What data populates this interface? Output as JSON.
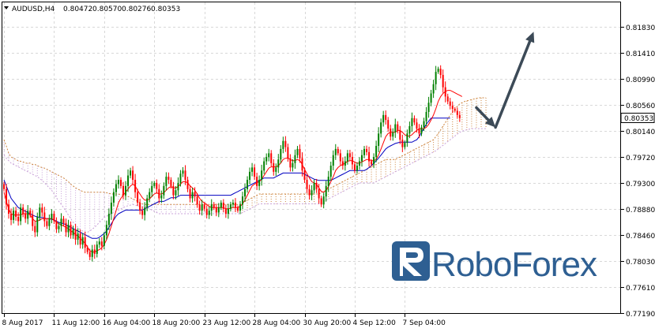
{
  "header": {
    "symbol": "AUDUSD,H4",
    "open": "0.80472",
    "high": "0.80570",
    "low": "0.80276",
    "close": "0.80353"
  },
  "watermark": {
    "brand": "RoboForex"
  },
  "colors": {
    "bull": "#008000",
    "bear": "#ff0000",
    "tenkan": "#ff0000",
    "kijun": "#0000c0",
    "cloud_a": "#cd853f",
    "cloud_b": "#c8a0d8",
    "arrow": "#3c4a57",
    "logo": "#2e5f92",
    "grid": "#d8d8d8"
  },
  "chart_data": {
    "type": "candlestick",
    "indicator": "ichimoku",
    "price_label": "0.80353",
    "y_ticks": [
      "0.81830",
      "0.81410",
      "0.80990",
      "0.80560",
      "0.80140",
      "0.79720",
      "0.79300",
      "0.78880",
      "0.78460",
      "0.78030",
      "0.77610",
      "0.77190"
    ],
    "y_values": [
      0.8183,
      0.8141,
      0.8099,
      0.8056,
      0.8014,
      0.7972,
      0.793,
      0.7888,
      0.7846,
      0.7803,
      0.7761,
      0.7719
    ],
    "x_ticks": [
      "8 Aug 2017",
      "11 Aug 12:00",
      "16 Aug 04:00",
      "18 Aug 20:00",
      "23 Aug 12:00",
      "28 Aug 04:00",
      "30 Aug 20:00",
      "4 Sep 12:00",
      "7 Sep 04:00"
    ],
    "x_tick_bars": [
      0,
      21,
      42,
      63,
      84,
      105,
      126,
      147,
      168
    ],
    "closes": [
      0.792,
      0.7895,
      0.788,
      0.787,
      0.7885,
      0.7875,
      0.7868,
      0.789,
      0.788,
      0.7872,
      0.7885,
      0.7878,
      0.786,
      0.785,
      0.7875,
      0.789,
      0.7882,
      0.7868,
      0.786,
      0.7872,
      0.788,
      0.7868,
      0.7855,
      0.786,
      0.7872,
      0.7865,
      0.785,
      0.7862,
      0.7845,
      0.7855,
      0.7838,
      0.7848,
      0.783,
      0.7842,
      0.7825,
      0.7818,
      0.781,
      0.7822,
      0.7815,
      0.783,
      0.7835,
      0.7828,
      0.7845,
      0.7862,
      0.788,
      0.7898,
      0.7915,
      0.7928,
      0.7935,
      0.7925,
      0.791,
      0.7925,
      0.7942,
      0.795,
      0.7935,
      0.7915,
      0.7898,
      0.7885,
      0.7878,
      0.789,
      0.7905,
      0.7915,
      0.7925,
      0.793,
      0.792,
      0.7905,
      0.791,
      0.7925,
      0.794,
      0.7935,
      0.7925,
      0.791,
      0.7918,
      0.793,
      0.7945,
      0.795,
      0.7935,
      0.792,
      0.7905,
      0.7915,
      0.7908,
      0.7895,
      0.7885,
      0.7895,
      0.7888,
      0.7878,
      0.7885,
      0.7895,
      0.789,
      0.7882,
      0.789,
      0.7898,
      0.7888,
      0.788,
      0.7888,
      0.7895,
      0.7898,
      0.789,
      0.7885,
      0.7895,
      0.7908,
      0.792,
      0.7935,
      0.7948,
      0.7955,
      0.794,
      0.7925,
      0.7935,
      0.795,
      0.7965,
      0.7972,
      0.7978,
      0.7962,
      0.7948,
      0.7955,
      0.7968,
      0.7985,
      0.7998,
      0.7988,
      0.797,
      0.7955,
      0.7962,
      0.7975,
      0.7985,
      0.797,
      0.795,
      0.7935,
      0.792,
      0.791,
      0.7918,
      0.793,
      0.792,
      0.7905,
      0.7895,
      0.7908,
      0.7925,
      0.794,
      0.7958,
      0.7975,
      0.7985,
      0.7978,
      0.7965,
      0.7958,
      0.7965,
      0.7978,
      0.7972,
      0.796,
      0.795,
      0.7958,
      0.7965,
      0.7975,
      0.7985,
      0.798,
      0.7965,
      0.796,
      0.7972,
      0.799,
      0.801,
      0.8028,
      0.804,
      0.8032,
      0.8018,
      0.8005,
      0.8012,
      0.8025,
      0.8015,
      0.8,
      0.7988,
      0.7995,
      0.801,
      0.8022,
      0.8035,
      0.8028,
      0.8018,
      0.801,
      0.802,
      0.803,
      0.8045,
      0.806,
      0.8075,
      0.809,
      0.811,
      0.8115,
      0.8105,
      0.8085,
      0.807,
      0.8062,
      0.8055,
      0.805,
      0.8047,
      0.804,
      0.8035
    ],
    "tenkan": [
      0.7915,
      0.79,
      0.7888,
      0.788,
      0.7878,
      0.7878,
      0.7878,
      0.7878,
      0.788,
      0.788,
      0.788,
      0.7878,
      0.7872,
      0.7868,
      0.7868,
      0.787,
      0.7872,
      0.7872,
      0.7872,
      0.7872,
      0.7872,
      0.787,
      0.7866,
      0.7864,
      0.7862,
      0.786,
      0.7858,
      0.7856,
      0.7852,
      0.785,
      0.7846,
      0.7844,
      0.784,
      0.7836,
      0.7832,
      0.7826,
      0.782,
      0.7818,
      0.7818,
      0.782,
      0.7822,
      0.7825,
      0.783,
      0.7838,
      0.7848,
      0.786,
      0.7872,
      0.7885,
      0.7898,
      0.7905,
      0.791,
      0.7915,
      0.792,
      0.7925,
      0.7928,
      0.7925,
      0.7918,
      0.7912,
      0.7906,
      0.7902,
      0.7902,
      0.7904,
      0.7908,
      0.7912,
      0.7914,
      0.7912,
      0.7912,
      0.7914,
      0.7918,
      0.7922,
      0.7924,
      0.7922,
      0.7922,
      0.7924,
      0.7928,
      0.7932,
      0.7932,
      0.793,
      0.7925,
      0.7922,
      0.7918,
      0.7912,
      0.7905,
      0.79,
      0.7898,
      0.7895,
      0.7892,
      0.789,
      0.789,
      0.789,
      0.789,
      0.789,
      0.789,
      0.7888,
      0.7888,
      0.7889,
      0.789,
      0.789,
      0.789,
      0.7892,
      0.7896,
      0.7902,
      0.791,
      0.7918,
      0.7925,
      0.7928,
      0.793,
      0.7932,
      0.7936,
      0.7942,
      0.7948,
      0.7954,
      0.7956,
      0.7956,
      0.7956,
      0.7958,
      0.7962,
      0.7968,
      0.797,
      0.797,
      0.7968,
      0.7966,
      0.7966,
      0.7968,
      0.7966,
      0.796,
      0.7952,
      0.7945,
      0.7938,
      0.7932,
      0.793,
      0.7928,
      0.7922,
      0.7916,
      0.7915,
      0.7918,
      0.7924,
      0.7932,
      0.794,
      0.795,
      0.7955,
      0.7958,
      0.796,
      0.7962,
      0.7965,
      0.7966,
      0.7966,
      0.7964,
      0.7962,
      0.7962,
      0.7964,
      0.7966,
      0.7968,
      0.7968,
      0.7966,
      0.7966,
      0.7968,
      0.7975,
      0.7985,
      0.7995,
      0.8005,
      0.801,
      0.8012,
      0.8012,
      0.8012,
      0.8015,
      0.8015,
      0.8012,
      0.8008,
      0.8006,
      0.8006,
      0.8008,
      0.8012,
      0.8015,
      0.8018,
      0.8018,
      0.8018,
      0.802,
      0.8025,
      0.8032,
      0.804,
      0.805,
      0.8062,
      0.807,
      0.8075,
      0.8078,
      0.808,
      0.808,
      0.8078,
      0.8076,
      0.8074,
      0.8072,
      0.807
    ],
    "kijun": [
      0.7935,
      0.7925,
      0.7915,
      0.7905,
      0.79,
      0.7895,
      0.789,
      0.7888,
      0.7886,
      0.7884,
      0.7882,
      0.788,
      0.7878,
      0.7876,
      0.7875,
      0.7874,
      0.7874,
      0.7873,
      0.7872,
      0.7872,
      0.7871,
      0.787,
      0.7868,
      0.7866,
      0.7865,
      0.7864,
      0.7862,
      0.786,
      0.7858,
      0.7856,
      0.7854,
      0.7852,
      0.785,
      0.7848,
      0.7846,
      0.7844,
      0.7842,
      0.784,
      0.784,
      0.784,
      0.7842,
      0.7845,
      0.7848,
      0.7852,
      0.7858,
      0.7864,
      0.787,
      0.7876,
      0.788,
      0.7882,
      0.7884,
      0.7886,
      0.7886,
      0.7886,
      0.7886,
      0.7886,
      0.7886,
      0.7886,
      0.7886,
      0.7888,
      0.789,
      0.7892,
      0.7894,
      0.7896,
      0.7898,
      0.79,
      0.79,
      0.79,
      0.7902,
      0.7904,
      0.7906,
      0.7906,
      0.7906,
      0.7908,
      0.791,
      0.791,
      0.791,
      0.791,
      0.791,
      0.791,
      0.791,
      0.791,
      0.791,
      0.791,
      0.791,
      0.791,
      0.791,
      0.791,
      0.791,
      0.791,
      0.791,
      0.791,
      0.791,
      0.791,
      0.791,
      0.791,
      0.7912,
      0.7914,
      0.7916,
      0.7918,
      0.792,
      0.7922,
      0.7924,
      0.7926,
      0.7928,
      0.793,
      0.7932,
      0.7934,
      0.7936,
      0.7938,
      0.7938,
      0.7938,
      0.7938,
      0.7938,
      0.794,
      0.7942,
      0.7944,
      0.7946,
      0.7946,
      0.7946,
      0.7946,
      0.7946,
      0.7946,
      0.7946,
      0.7946,
      0.7946,
      0.7944,
      0.7942,
      0.794,
      0.7938,
      0.7936,
      0.7935,
      0.7934,
      0.7934,
      0.7934,
      0.7934,
      0.7934,
      0.7934,
      0.7936,
      0.7938,
      0.794,
      0.7942,
      0.7944,
      0.7946,
      0.7948,
      0.795,
      0.795,
      0.795,
      0.795,
      0.795,
      0.795,
      0.795,
      0.7952,
      0.7955,
      0.7958,
      0.7962,
      0.7966,
      0.797,
      0.7975,
      0.798,
      0.7985,
      0.7988,
      0.799,
      0.7992,
      0.7994,
      0.7995,
      0.7996,
      0.7996,
      0.7996,
      0.7996,
      0.7996,
      0.7996,
      0.7998,
      0.8,
      0.8005,
      0.8012,
      0.8018,
      0.8025,
      0.803,
      0.8035,
      0.8035,
      0.8035,
      0.8035,
      0.8035,
      0.8035,
      0.8035,
      0.8035,
      0.8035
    ],
    "cloud_upper": [
      0.8,
      0.799,
      0.7978,
      0.7972,
      0.797,
      0.7968,
      0.7966,
      0.7965,
      0.7964,
      0.7962,
      0.7962,
      0.7962,
      0.796,
      0.796,
      0.7958,
      0.7956,
      0.7955,
      0.7954,
      0.7952,
      0.795,
      0.7948,
      0.7946,
      0.7944,
      0.7942,
      0.794,
      0.7938,
      0.7935,
      0.7932,
      0.7928,
      0.7925,
      0.7922,
      0.792,
      0.7918,
      0.7916,
      0.7915,
      0.7915,
      0.7915,
      0.7915,
      0.7915,
      0.7915,
      0.7915,
      0.7915,
      0.7915,
      0.7914,
      0.7913,
      0.7912,
      0.7912,
      0.7912,
      0.7912,
      0.7911,
      0.791,
      0.7909,
      0.7908,
      0.7906,
      0.7904,
      0.7902,
      0.79,
      0.7898,
      0.7896,
      0.7895,
      0.7895,
      0.7895,
      0.7895,
      0.7895,
      0.7895,
      0.7895,
      0.7895,
      0.7895,
      0.7895,
      0.7895,
      0.7895,
      0.7895,
      0.7895,
      0.7895,
      0.7895,
      0.7895,
      0.7895,
      0.7895,
      0.7895,
      0.7895,
      0.7895,
      0.7895,
      0.7895,
      0.7895,
      0.7895,
      0.7895,
      0.7895,
      0.7895,
      0.7895,
      0.7895,
      0.7895,
      0.7895,
      0.7895,
      0.7895,
      0.7895,
      0.7895,
      0.7895,
      0.7895,
      0.7895,
      0.7895,
      0.7898,
      0.79,
      0.7902,
      0.7904,
      0.7906,
      0.7908,
      0.791,
      0.7912,
      0.7912,
      0.7912,
      0.7912,
      0.7912,
      0.7912,
      0.7912,
      0.7912,
      0.7912,
      0.7912,
      0.7912,
      0.7912,
      0.7912,
      0.7912,
      0.7912,
      0.7912,
      0.7912,
      0.7912,
      0.7912,
      0.7912,
      0.7912,
      0.7912,
      0.7912,
      0.7912,
      0.7912,
      0.7912,
      0.7914,
      0.7916,
      0.7918,
      0.792,
      0.7922,
      0.7924,
      0.7926,
      0.7928,
      0.793,
      0.7932,
      0.7934,
      0.7936,
      0.7938,
      0.794,
      0.7942,
      0.7944,
      0.7946,
      0.7948,
      0.795,
      0.7952,
      0.7954,
      0.7956,
      0.7958,
      0.796,
      0.7962,
      0.7964,
      0.7966,
      0.7968,
      0.7968,
      0.7968,
      0.7968,
      0.7968,
      0.797,
      0.7972,
      0.7974,
      0.7976,
      0.7978,
      0.798,
      0.7982,
      0.7984,
      0.7986,
      0.7988,
      0.799,
      0.7992,
      0.7994,
      0.7996,
      0.7998,
      0.8,
      0.8005,
      0.801,
      0.8016,
      0.8022,
      0.8028,
      0.8034,
      0.804,
      0.8045,
      0.805,
      0.8054,
      0.8058,
      0.806,
      0.8062,
      0.8063,
      0.8064,
      0.8065,
      0.8066,
      0.8067,
      0.8068,
      0.8068,
      0.8068,
      0.8068
    ],
    "cloud_lower": [
      0.7975,
      0.797,
      0.7966,
      0.7962,
      0.796,
      0.7958,
      0.7956,
      0.7954,
      0.7952,
      0.795,
      0.7948,
      0.7946,
      0.7944,
      0.7942,
      0.794,
      0.7937,
      0.7934,
      0.793,
      0.7926,
      0.7922,
      0.7918,
      0.7912,
      0.7906,
      0.79,
      0.7895,
      0.789,
      0.7884,
      0.7878,
      0.7872,
      0.7866,
      0.7862,
      0.7858,
      0.7854,
      0.7852,
      0.785,
      0.785,
      0.7852,
      0.7855,
      0.7858,
      0.7862,
      0.7866,
      0.787,
      0.7874,
      0.7876,
      0.7878,
      0.788,
      0.7882,
      0.7884,
      0.7886,
      0.7888,
      0.789,
      0.7892,
      0.7893,
      0.7894,
      0.7895,
      0.7894,
      0.7893,
      0.7892,
      0.7892,
      0.7892,
      0.789,
      0.7888,
      0.7886,
      0.7884,
      0.7882,
      0.788,
      0.788,
      0.788,
      0.788,
      0.788,
      0.788,
      0.788,
      0.788,
      0.788,
      0.788,
      0.788,
      0.788,
      0.788,
      0.788,
      0.788,
      0.788,
      0.788,
      0.788,
      0.788,
      0.788,
      0.788,
      0.788,
      0.788,
      0.788,
      0.788,
      0.788,
      0.788,
      0.788,
      0.788,
      0.788,
      0.788,
      0.788,
      0.788,
      0.788,
      0.788,
      0.7882,
      0.7884,
      0.7886,
      0.7888,
      0.789,
      0.7892,
      0.7894,
      0.7896,
      0.7896,
      0.7896,
      0.7896,
      0.7896,
      0.7896,
      0.7896,
      0.7896,
      0.7896,
      0.7896,
      0.7896,
      0.7896,
      0.7896,
      0.7896,
      0.7896,
      0.7896,
      0.7896,
      0.7896,
      0.7896,
      0.7896,
      0.7896,
      0.7896,
      0.7896,
      0.7896,
      0.7896,
      0.7896,
      0.7898,
      0.79,
      0.7902,
      0.7904,
      0.7906,
      0.7908,
      0.791,
      0.7912,
      0.7914,
      0.7916,
      0.7918,
      0.792,
      0.7922,
      0.7924,
      0.7926,
      0.7928,
      0.793,
      0.793,
      0.793,
      0.793,
      0.793,
      0.793,
      0.793,
      0.7932,
      0.7934,
      0.7936,
      0.7938,
      0.794,
      0.7942,
      0.7944,
      0.7946,
      0.7948,
      0.795,
      0.7952,
      0.7954,
      0.7956,
      0.7958,
      0.796,
      0.7962,
      0.7964,
      0.7966,
      0.7968,
      0.797,
      0.7972,
      0.7974,
      0.7976,
      0.7978,
      0.798,
      0.7982,
      0.7985,
      0.7988,
      0.7991,
      0.7994,
      0.7997,
      0.8,
      0.8003,
      0.8006,
      0.8009,
      0.8012,
      0.8014,
      0.8015,
      0.8016,
      0.8017,
      0.8018,
      0.8018,
      0.8018,
      0.8018,
      0.8018,
      0.8018,
      0.8018
    ],
    "forecast_arrows": [
      {
        "from_bar": 198,
        "from_price": 0.8052,
        "to_bar": 206,
        "to_price": 0.802
      },
      {
        "from_bar": 206,
        "from_price": 0.802,
        "to_bar": 222,
        "to_price": 0.8175
      }
    ],
    "grid": true
  }
}
